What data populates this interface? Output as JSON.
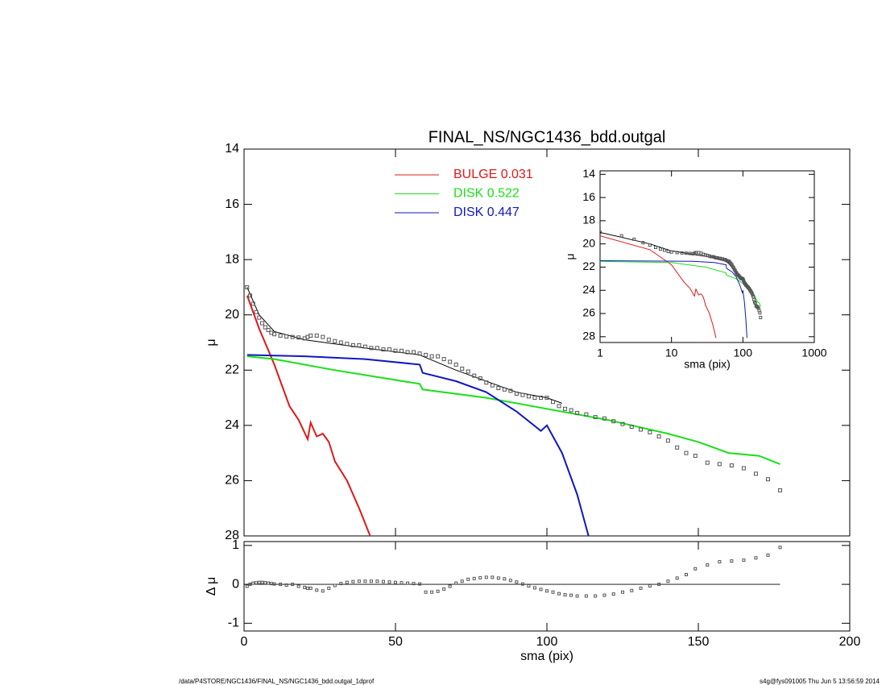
{
  "chart_data": [
    {
      "type": "line",
      "title": "FINAL_NS/NGC1436_bdd.outgal",
      "ylabel": "μ",
      "xlim": [
        0,
        200
      ],
      "xticks": [
        0,
        50,
        100,
        150,
        200
      ],
      "ylim": [
        28,
        14
      ],
      "yticks": [
        14,
        16,
        18,
        20,
        22,
        24,
        26,
        28
      ],
      "series": [
        {
          "name": "BULGE  0.031",
          "color": "#e01818",
          "x": [
            1,
            5,
            10,
            15,
            18,
            21,
            22,
            24,
            26,
            28,
            30,
            34,
            38,
            42
          ],
          "values": [
            19.3,
            20.5,
            21.8,
            23.3,
            23.8,
            24.5,
            23.9,
            24.4,
            24.3,
            24.6,
            25.3,
            26.0,
            27.0,
            28.1
          ]
        },
        {
          "name": "DISK  0.522",
          "color": "#18e018",
          "x": [
            1,
            10,
            30,
            58,
            59,
            80,
            100,
            120,
            140,
            150,
            160,
            170,
            177
          ],
          "values": [
            21.5,
            21.6,
            22.0,
            22.5,
            22.7,
            23.0,
            23.4,
            23.8,
            24.3,
            24.6,
            25.0,
            25.1,
            25.4
          ]
        },
        {
          "name": "DISK  0.447",
          "color": "#1018c0",
          "x": [
            1,
            20,
            40,
            58,
            59,
            70,
            80,
            90,
            98,
            100,
            105,
            110,
            114
          ],
          "values": [
            21.45,
            21.5,
            21.6,
            21.8,
            22.1,
            22.4,
            22.8,
            23.5,
            24.2,
            24.0,
            25.0,
            26.5,
            28.1
          ]
        },
        {
          "color": "#000000",
          "x": [
            1,
            5,
            10,
            20,
            40,
            58,
            59,
            70,
            90,
            100,
            105
          ],
          "values": [
            19.0,
            20.0,
            20.6,
            20.9,
            21.2,
            21.45,
            21.5,
            22.0,
            22.8,
            23.0,
            23.2
          ]
        },
        {
          "color": "#555555",
          "marker": "square",
          "x": [
            1,
            2,
            3,
            4,
            5,
            6,
            7,
            8,
            9,
            10,
            12,
            14,
            16,
            18,
            20,
            21,
            22,
            24,
            26,
            28,
            30,
            32,
            34,
            36,
            38,
            40,
            42,
            44,
            46,
            48,
            50,
            52,
            54,
            56,
            58,
            60,
            62,
            64,
            66,
            68,
            70,
            72,
            74,
            76,
            78,
            80,
            82,
            84,
            86,
            88,
            90,
            92,
            94,
            96,
            98,
            100,
            102,
            104,
            106,
            108,
            110,
            113,
            116,
            119,
            122,
            125,
            128,
            131,
            134,
            137,
            140,
            143,
            146,
            149,
            153,
            157,
            161,
            165,
            169,
            173,
            177
          ],
          "values": [
            19.0,
            19.3,
            19.6,
            19.9,
            20.1,
            20.3,
            20.45,
            20.55,
            20.65,
            20.7,
            20.75,
            20.78,
            20.8,
            20.82,
            20.85,
            20.8,
            20.75,
            20.75,
            20.8,
            20.9,
            20.95,
            21.0,
            21.05,
            21.1,
            21.1,
            21.15,
            21.2,
            21.2,
            21.25,
            21.25,
            21.3,
            21.3,
            21.35,
            21.35,
            21.4,
            21.45,
            21.5,
            21.5,
            21.6,
            21.7,
            21.8,
            21.95,
            22.05,
            22.2,
            22.3,
            22.45,
            22.55,
            22.65,
            22.7,
            22.75,
            22.85,
            22.9,
            22.95,
            23.0,
            23.0,
            23.0,
            23.15,
            23.3,
            23.4,
            23.45,
            23.55,
            23.6,
            23.7,
            23.75,
            23.85,
            23.95,
            24.05,
            24.15,
            24.25,
            24.4,
            24.55,
            24.8,
            25.0,
            25.1,
            25.35,
            25.4,
            25.45,
            25.55,
            25.75,
            25.95,
            26.35
          ]
        }
      ]
    },
    {
      "type": "scatter",
      "ylabel": "Δ μ",
      "xlabel": "sma (pix)",
      "xlim": [
        0,
        200
      ],
      "xticks": [
        0,
        50,
        100,
        150,
        200
      ],
      "ylim": [
        -1.2,
        1.1
      ],
      "yticks": [
        -1,
        0,
        1
      ],
      "x": [
        1,
        2,
        3,
        4,
        5,
        6,
        7,
        8,
        9,
        10,
        12,
        14,
        16,
        18,
        20,
        21,
        22,
        24,
        26,
        28,
        30,
        32,
        34,
        36,
        38,
        40,
        42,
        44,
        46,
        48,
        50,
        52,
        54,
        56,
        58,
        60,
        62,
        64,
        66,
        68,
        70,
        72,
        74,
        76,
        78,
        80,
        82,
        84,
        86,
        88,
        90,
        92,
        94,
        96,
        98,
        100,
        102,
        104,
        106,
        108,
        110,
        113,
        116,
        119,
        122,
        125,
        128,
        131,
        134,
        137,
        140,
        143,
        146,
        149,
        153,
        157,
        161,
        165,
        169,
        173,
        177
      ],
      "values": [
        -0.05,
        0,
        0.03,
        0.04,
        0.05,
        0.05,
        0.04,
        0.03,
        0.02,
        0.01,
        0,
        -0.02,
        0,
        -0.05,
        -0.08,
        -0.1,
        -0.1,
        -0.15,
        -0.17,
        -0.1,
        -0.03,
        0.02,
        0.05,
        0.07,
        0.08,
        0.08,
        0.08,
        0.08,
        0.07,
        0.06,
        0.05,
        0.04,
        0.03,
        0.02,
        0.01,
        -0.2,
        -0.2,
        -0.18,
        -0.12,
        -0.05,
        0.03,
        0.08,
        0.13,
        0.15,
        0.17,
        0.18,
        0.18,
        0.16,
        0.14,
        0.1,
        0.06,
        0.01,
        -0.04,
        -0.09,
        -0.13,
        -0.17,
        -0.2,
        -0.24,
        -0.27,
        -0.28,
        -0.3,
        -0.3,
        -0.3,
        -0.28,
        -0.25,
        -0.2,
        -0.16,
        -0.1,
        -0.04,
        0,
        0.08,
        0.16,
        0.25,
        0.4,
        0.5,
        0.58,
        0.6,
        0.62,
        0.68,
        0.75,
        0.95
      ],
      "color": "#555555"
    },
    {
      "type": "line",
      "ylabel": "μ",
      "xlabel": "sma (pix)",
      "xlog": true,
      "xlim": [
        1,
        1000
      ],
      "xticks": [
        1,
        10,
        100,
        1000
      ],
      "ylim": [
        28.5,
        13.7
      ],
      "yticks": [
        14,
        16,
        18,
        20,
        22,
        24,
        26,
        28
      ]
    }
  ],
  "footer": {
    "left": "/data/P4STORE/NGC1436/FINAL_NS/NGC1436_bdd.outgal_1dprof",
    "right": "s4g@fys091005  Thu Jun  5 13:56:59 2014"
  }
}
